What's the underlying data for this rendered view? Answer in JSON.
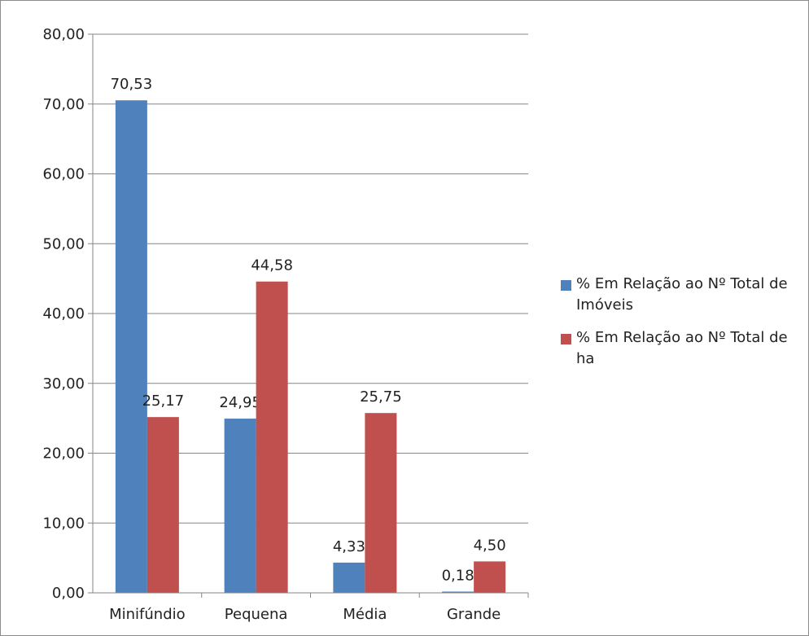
{
  "chart_data": {
    "type": "bar",
    "categories": [
      "Minifúndio",
      "Pequena",
      "Média",
      "Grande"
    ],
    "series": [
      {
        "name": "% Em Relação ao Nº Total de Imóveis",
        "values": [
          70.53,
          24.95,
          4.33,
          0.18
        ],
        "labels": [
          "70,53",
          "24,95",
          "4,33",
          "0,18"
        ],
        "color": "#4f81bd"
      },
      {
        "name": "% Em Relação ao Nº Total de ha",
        "values": [
          25.17,
          44.58,
          25.75,
          4.5
        ],
        "labels": [
          "25,17",
          "44,58",
          "25,75",
          "4,50"
        ],
        "color": "#c0504d"
      }
    ],
    "ylim": [
      0,
      80
    ],
    "yticks": [
      0,
      10,
      20,
      30,
      40,
      50,
      60,
      70,
      80
    ],
    "ytick_labels": [
      "0,00",
      "10,00",
      "20,00",
      "30,00",
      "40,00",
      "50,00",
      "60,00",
      "70,00",
      "80,00"
    ],
    "grid": true,
    "legend_position": "right"
  }
}
